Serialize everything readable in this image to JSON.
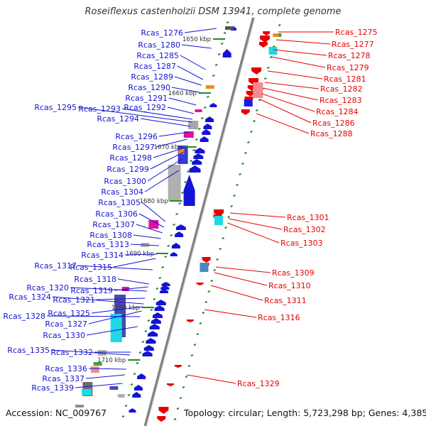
{
  "title": "Roseiflexus castenholzii DSM 13941, complete genome",
  "footer": {
    "accession": "Accession: NC_009767",
    "info": "Topology: circular; Length: 5,723,298 bp; Genes: 4,385"
  },
  "colors": {
    "left_strand": "#1414d4",
    "right_strand": "#e80000",
    "axis": "#808080",
    "tick": "#208a20"
  },
  "ruler": [
    "1650 kbp",
    "1660 kbp",
    "1670 kbp",
    "1680 kbp",
    "1690 kbp",
    "1700 kbp",
    "1710 kbp"
  ],
  "left_genes": [
    "Rcas_1276",
    "Rcas_1280",
    "Rcas_1285",
    "Rcas_1287",
    "Rcas_1289",
    "Rcas_1290",
    "Rcas_1291",
    "Rcas_1292",
    "Rcas_1293",
    "Rcas_1295",
    "Rcas_1294",
    "Rcas_1296",
    "Rcas_1297",
    "Rcas_1298",
    "Rcas_1299",
    "Rcas_1300",
    "Rcas_1304",
    "Rcas_1305",
    "Rcas_1306",
    "Rcas_1307",
    "Rcas_1308",
    "Rcas_1313",
    "Rcas_1314",
    "Rcas_1315",
    "Rcas_1317",
    "Rcas_1318",
    "Rcas_1319",
    "Rcas_1320",
    "Rcas_1321",
    "Rcas_1324",
    "Rcas_1325",
    "Rcas_1327",
    "Rcas_1328",
    "Rcas_1330",
    "Rcas_1332",
    "Rcas_1335",
    "Rcas_1336",
    "Rcas_1337",
    "Rcas_1339"
  ],
  "right_genes": [
    "Rcas_1275",
    "Rcas_1277",
    "Rcas_1278",
    "Rcas_1279",
    "Rcas_1281",
    "Rcas_1282",
    "Rcas_1283",
    "Rcas_1284",
    "Rcas_1286",
    "Rcas_1288",
    "Rcas_1301",
    "Rcas_1302",
    "Rcas_1303",
    "Rcas_1309",
    "Rcas_1310",
    "Rcas_1311",
    "Rcas_1316",
    "Rcas_1329"
  ]
}
